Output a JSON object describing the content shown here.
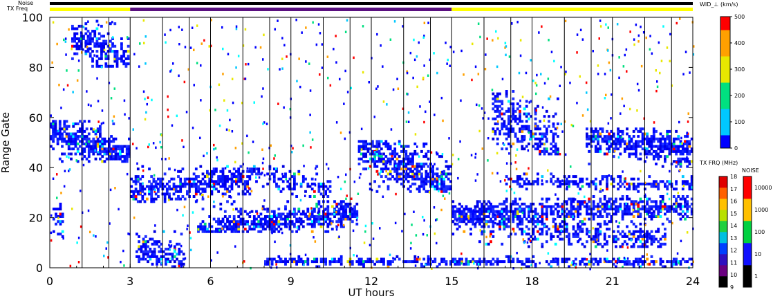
{
  "header": {
    "noise_label": "Noise",
    "txfreq_label": "TX Freq"
  },
  "chart_data": {
    "type": "heatmap",
    "xlabel": "UT hours",
    "ylabel": "Range Gate",
    "xlim": [
      0,
      24
    ],
    "ylim": [
      0,
      100
    ],
    "x_ticks": [
      "0",
      "3",
      "6",
      "9",
      "12",
      "15",
      "18",
      "21",
      "24"
    ],
    "y_ticks": [
      "0",
      "20",
      "40",
      "60",
      "80",
      "100"
    ],
    "colorbars": {
      "width": {
        "title": "WID_⊥ (km/s)",
        "ticks": [
          "0",
          "100",
          "200",
          "300",
          "400",
          "500"
        ],
        "range": [
          0,
          500
        ],
        "colors": [
          "#0000ff",
          "#00c8ff",
          "#00e080",
          "#e8e800",
          "#ffa000",
          "#ff0000"
        ]
      },
      "tx_freq": {
        "title": "TX FRQ (MHz)",
        "ticks": [
          "9",
          "10",
          "11",
          "12",
          "13",
          "14",
          "15",
          "16",
          "17",
          "18"
        ],
        "colors": [
          "#000000",
          "#6a0080",
          "#3010c0",
          "#0040ff",
          "#00c0e0",
          "#20d040",
          "#b8e000",
          "#ffc000",
          "#ff6000",
          "#e00000"
        ]
      },
      "noise": {
        "title": "NOISE",
        "ticks": [
          "1",
          "10",
          "100",
          "1000",
          "10000"
        ],
        "colors": [
          "#000000",
          "#1010ff",
          "#00d040",
          "#ffc000",
          "#ff0000"
        ]
      }
    },
    "top_bars": {
      "noise": [
        {
          "from": 0,
          "to": 24,
          "color": "#000000"
        }
      ],
      "tx_freq": [
        {
          "from": 0,
          "to": 3,
          "color": "#ffff00"
        },
        {
          "from": 3,
          "to": 15,
          "color": "#5a1080"
        },
        {
          "from": 15,
          "to": 24,
          "color": "#ffff00"
        }
      ]
    },
    "scan_boundaries": [
      0,
      1,
      2,
      3,
      4,
      5,
      6,
      7,
      8,
      9,
      10,
      11,
      12,
      13,
      14,
      15,
      16,
      17,
      18,
      19,
      20,
      21,
      22,
      23,
      24
    ],
    "dense_regions": [
      {
        "t0": 0.0,
        "t1": 3.0,
        "g0": 42,
        "g1": 58,
        "cx": 54,
        "cy": 44,
        "density": 0.85
      },
      {
        "t0": 0.1,
        "t1": 0.5,
        "g0": 10,
        "g1": 25,
        "cx": 20,
        "cy": 18,
        "density": 0.6
      },
      {
        "t0": 0.8,
        "t1": 3.0,
        "g0": 80,
        "g1": 98,
        "cx": 92,
        "cy": 82,
        "density": 0.7
      },
      {
        "t0": 3.0,
        "t1": 7.5,
        "g0": 26,
        "g1": 40,
        "cx": 30,
        "cy": 36,
        "density": 0.75
      },
      {
        "t0": 7.5,
        "t1": 10.5,
        "g0": 28,
        "g1": 40,
        "cx": 38,
        "cy": 30,
        "density": 0.4
      },
      {
        "t0": 3.2,
        "t1": 5.0,
        "g0": 0,
        "g1": 14,
        "cx": 8,
        "cy": 2,
        "density": 0.7
      },
      {
        "t0": 5.5,
        "t1": 11.5,
        "g0": 14,
        "g1": 26,
        "cx": 14,
        "cy": 22,
        "density": 0.85
      },
      {
        "t0": 8.0,
        "t1": 24.0,
        "g0": 0,
        "g1": 4,
        "cx": 2,
        "cy": 2,
        "density": 0.7
      },
      {
        "t0": 11.5,
        "t1": 15.0,
        "g0": 30,
        "g1": 50,
        "cx": 48,
        "cy": 32,
        "density": 0.8
      },
      {
        "t0": 15.0,
        "t1": 24.0,
        "g0": 18,
        "g1": 28,
        "cx": 22,
        "cy": 24,
        "density": 0.8
      },
      {
        "t0": 15.0,
        "t1": 23.0,
        "g0": 8,
        "g1": 22,
        "cx": 20,
        "cy": 10,
        "density": 0.55
      },
      {
        "t0": 16.5,
        "t1": 19.0,
        "g0": 45,
        "g1": 70,
        "cx": 62,
        "cy": 48,
        "density": 0.55
      },
      {
        "t0": 20.0,
        "t1": 24.0,
        "g0": 40,
        "g1": 55,
        "cx": 52,
        "cy": 46,
        "density": 0.8
      },
      {
        "t0": 17.0,
        "t1": 24.0,
        "g0": 30,
        "g1": 37,
        "cx": 34,
        "cy": 33,
        "density": 0.5
      }
    ]
  }
}
